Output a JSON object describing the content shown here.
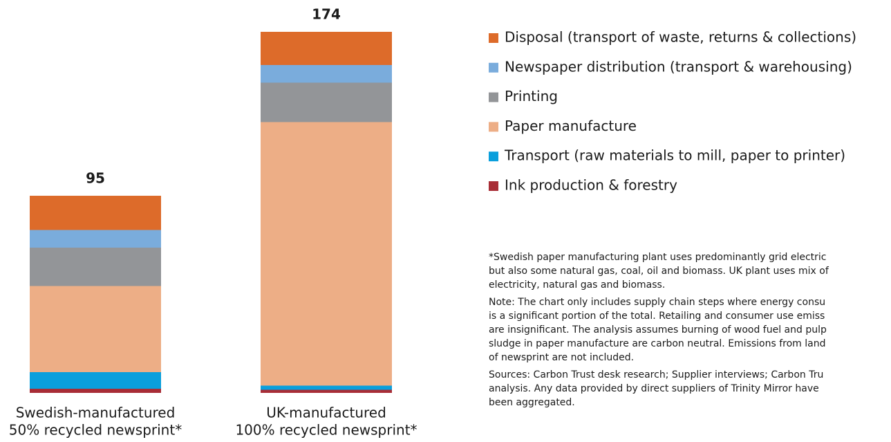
{
  "chart_data": {
    "type": "stacked_bar",
    "categories": [
      [
        "Swedish-manufactured",
        "50% recycled newsprint*"
      ],
      [
        "UK-manufactured",
        "100% recycled newsprint*"
      ]
    ],
    "series": [
      {
        "name": "Ink production & forestry",
        "color": "#a82d36",
        "values": [
          2,
          1.5
        ]
      },
      {
        "name": "Transport (raw materials to mill, paper to printer)",
        "color": "#0a9fdc",
        "values": [
          8,
          2
        ]
      },
      {
        "name": "Paper manufacture",
        "color": "#edae86",
        "values": [
          41.5,
          127
        ]
      },
      {
        "name": "Printing",
        "color": "#939598",
        "values": [
          18.5,
          19
        ]
      },
      {
        "name": "Newspaper distribution (transport & warehousing)",
        "color": "#7aacdc",
        "values": [
          8.5,
          8.5
        ]
      },
      {
        "name": "Disposal (transport of waste, returns & collections)",
        "color": "#dd6b2a",
        "values": [
          16.5,
          16
        ]
      }
    ],
    "totals": [
      95,
      174
    ],
    "notes": [
      [
        "*Swedish paper manufacturing plant uses predominantly grid electric",
        "but also some natural gas, coal, oil and biomass. UK plant uses mix of",
        "electricity, natural gas and biomass."
      ],
      [
        "Note: The chart only includes supply chain steps where energy consu",
        "is a significant portion of the total. Retailing and consumer use emiss",
        "are insignificant. The analysis assumes burning of wood fuel and pulp",
        "sludge in paper manufacture are carbon neutral. Emissions from land",
        "of newsprint are not included."
      ],
      [
        "Sources: Carbon Trust desk research; Supplier interviews; Carbon Tru",
        "analysis. Any data provided by direct suppliers of Trinity Mirror have",
        "been aggregated."
      ]
    ]
  }
}
